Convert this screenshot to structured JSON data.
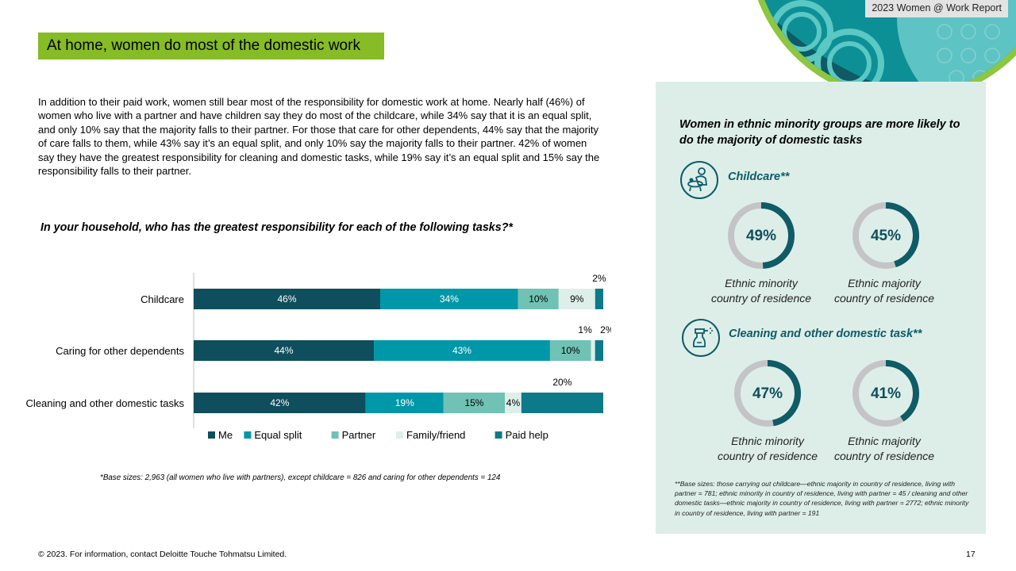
{
  "header": {
    "report_tag": "2023 Women @ Work Report",
    "title": "At home, women do most of the domestic work"
  },
  "intro_text": "In addition to their paid work, women still bear most of the responsibility for domestic work at home. Nearly half (46%) of women who live with a partner and have children say they do most of the childcare, while 34% say that it is an equal split, and only 10% say that the majority falls to their partner. For those that care for other dependents, 44% say that the majority of care falls to them, while 43% say it’s an equal split, and only 10% say the majority falls to their partner. 42% of women say they have the greatest responsibility for cleaning and domestic tasks, while 19% say it’s an equal split and 15% say the responsibility falls to their partner.",
  "question": "In your household, who has the greatest responsibility for each of the following tasks?*",
  "chart_footnote": "*Base sizes: 2,963 (all women who live with partners), except childcare = 826 and caring for other dependents = 124",
  "chart_data": {
    "type": "bar",
    "orientation": "horizontal",
    "stacked": true,
    "categories": [
      "Childcare",
      "Caring for other dependents",
      "Cleaning and other domestic tasks"
    ],
    "series": [
      {
        "name": "Me",
        "values": [
          46,
          44,
          42
        ],
        "color": "#0f4e5c",
        "label_color": "#ffffff"
      },
      {
        "name": "Equal split",
        "values": [
          34,
          43,
          19
        ],
        "color": "#0097a9",
        "label_color": "#ffffff"
      },
      {
        "name": "Partner",
        "values": [
          10,
          10,
          15
        ],
        "color": "#6fc2b4",
        "label_color": "#000000"
      },
      {
        "name": "Family/friend",
        "values": [
          9,
          1,
          4
        ],
        "color": "#ddefe8",
        "label_color": "#000000"
      },
      {
        "name": "Paid help",
        "values": [
          2,
          2,
          20
        ],
        "color": "#0d7a8a",
        "label_color": "#000000"
      }
    ],
    "legend_position": "bottom"
  },
  "side": {
    "title": "Women in ethnic minority groups are more likely to do the majority of domestic tasks",
    "childcare": {
      "label": "Childcare**",
      "icon": "childcare-icon",
      "donuts": [
        {
          "value": 49,
          "display": "49%",
          "caption_line1": "Ethnic minority",
          "caption_line2": "country of residence"
        },
        {
          "value": 45,
          "display": "45%",
          "caption_line1": "Ethnic majority",
          "caption_line2": "country of residence"
        }
      ]
    },
    "cleaning": {
      "label": "Cleaning and other domestic task**",
      "icon": "spray-bottle-icon",
      "donuts": [
        {
          "value": 47,
          "display": "47%",
          "caption_line1": "Ethnic minority",
          "caption_line2": "country of residence"
        },
        {
          "value": 41,
          "display": "41%",
          "caption_line1": "Ethnic majority",
          "caption_line2": "country of residence"
        }
      ]
    },
    "footnote": "**Base sizes: those carrying out childcare—ethnic majority in country of residence, living with partner = 781; ethnic minority in country of residence, living with partner = 45 / cleaning and other domestic tasks—ethnic majority in country of residence, living with partner = 2772; ethnic minority in country of residence, living with partner = 191",
    "colors": {
      "donut_fill": "#0f5b66",
      "donut_track": "#c4c4c7",
      "panel_bg": "#ddeee9"
    }
  },
  "footer": {
    "copyright": "© 2023. For information, contact Deloitte Touche Tohmatsu Limited.",
    "page_number": "17"
  }
}
